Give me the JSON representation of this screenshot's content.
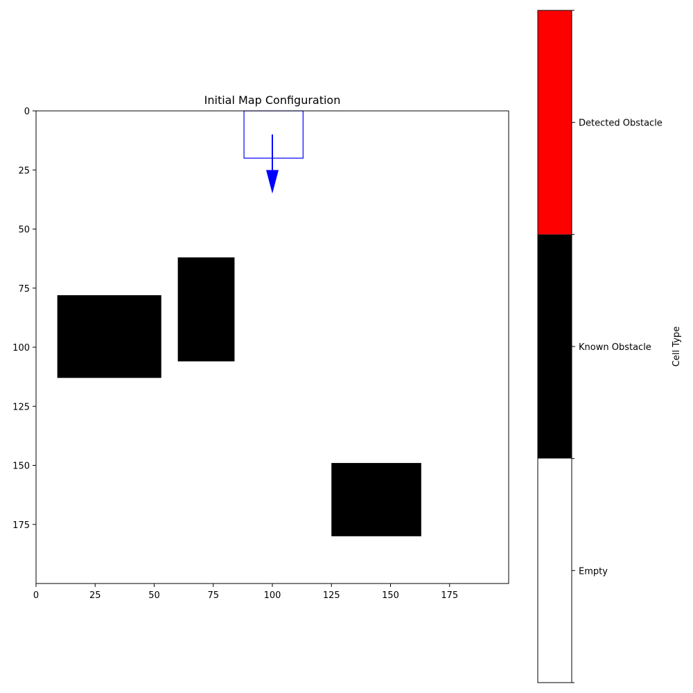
{
  "chart_data": {
    "type": "heatmap",
    "title": "Initial Map Configuration",
    "grid": false,
    "x_axis": {
      "range": [
        0,
        200
      ],
      "ticks": [
        0,
        25,
        50,
        75,
        100,
        125,
        150,
        175
      ]
    },
    "y_axis": {
      "range": [
        200,
        0
      ],
      "inverted": true,
      "ticks": [
        0,
        25,
        50,
        75,
        100,
        125,
        150,
        175
      ]
    },
    "known_obstacles": [
      {
        "x0": 9,
        "x1": 53,
        "y0": 78,
        "y1": 113
      },
      {
        "x0": 60,
        "x1": 84,
        "y0": 62,
        "y1": 106
      },
      {
        "x0": 125,
        "x1": 163,
        "y0": 149,
        "y1": 180
      }
    ],
    "detected_obstacles": [],
    "robot": {
      "box": {
        "x0": 88,
        "x1": 113,
        "y0": 0,
        "y1": 20
      },
      "heading_arrow": {
        "x": 100,
        "y0": 10,
        "y1": 35
      },
      "color": "#0000ff"
    },
    "colorbar": {
      "label": "Cell Type",
      "placement": "right",
      "entries": [
        {
          "name": "Detected Obstacle",
          "color": "#ff0000"
        },
        {
          "name": "Known Obstacle",
          "color": "#000000"
        },
        {
          "name": "Empty",
          "color": "#ffffff"
        }
      ]
    }
  }
}
